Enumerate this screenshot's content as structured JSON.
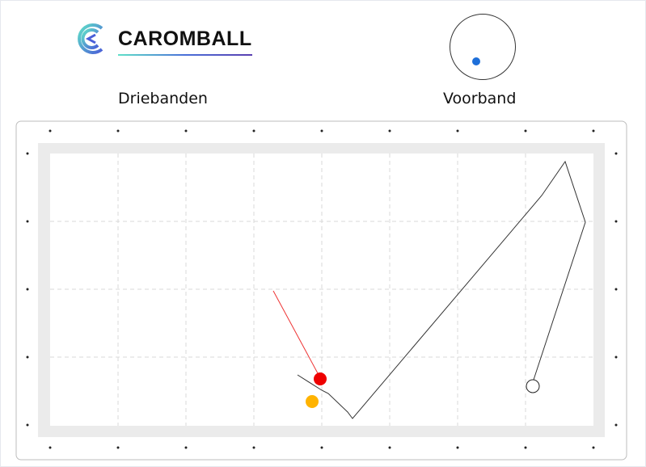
{
  "brand": {
    "name": "CAROMBALL",
    "logo_icon": "caromball-c-logo"
  },
  "game_mode": "Driebanden",
  "shot_type": "Voorband",
  "spin_indicator": {
    "hit_point_color": "#1e6fd9"
  },
  "colors": {
    "cue_ball": "#ffffff",
    "red_ball": "#ee0000",
    "yellow_ball": "#ffb300",
    "cue_path": "#333333",
    "red_path": "#ee3333",
    "cushion": "#ebebeb"
  }
}
